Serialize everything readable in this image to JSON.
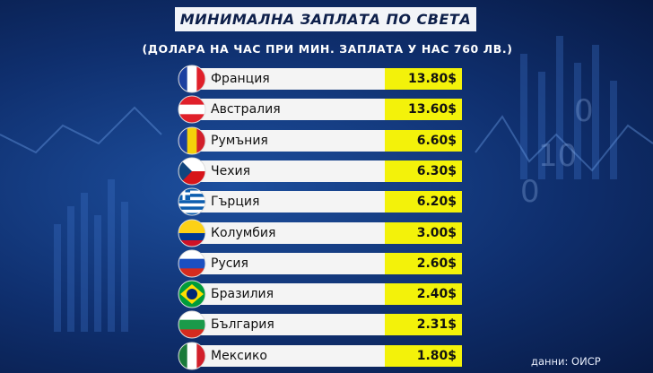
{
  "title": "МИНИМАЛНА ЗАПЛАТА ПО СВЕТА",
  "subtitle": "(ДОЛАРА НА ЧАС ПРИ МИН. ЗАПЛАТА У НАС 760 ЛВ.)",
  "rows": [
    {
      "country": "Франция",
      "value": "13.80$"
    },
    {
      "country": "Австралия",
      "value": "13.60$"
    },
    {
      "country": "Румъния",
      "value": "6.60$"
    },
    {
      "country": "Чехия",
      "value": "6.30$"
    },
    {
      "country": "Гърция",
      "value": "6.20$"
    },
    {
      "country": "Колумбия",
      "value": "3.00$"
    },
    {
      "country": "Русия",
      "value": "2.60$"
    },
    {
      "country": "Бразилия",
      "value": "2.40$"
    },
    {
      "country": "България",
      "value": "2.31$"
    },
    {
      "country": "Мексико",
      "value": "1.80$"
    }
  ],
  "source": "данни: ОИСР"
}
